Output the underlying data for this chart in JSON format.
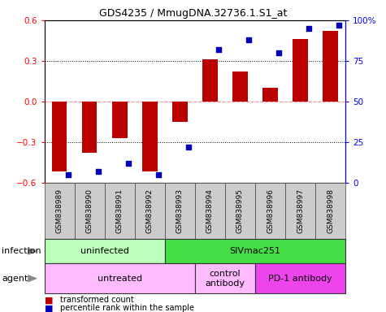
{
  "title": "GDS4235 / MmugDNA.32736.1.S1_at",
  "samples": [
    "GSM838989",
    "GSM838990",
    "GSM838991",
    "GSM838992",
    "GSM838993",
    "GSM838994",
    "GSM838995",
    "GSM838996",
    "GSM838997",
    "GSM838998"
  ],
  "transformed_count": [
    -0.52,
    -0.38,
    -0.27,
    -0.52,
    -0.15,
    0.31,
    0.22,
    0.1,
    0.46,
    0.52
  ],
  "percentile_rank": [
    5,
    7,
    12,
    5,
    22,
    82,
    88,
    80,
    95,
    97
  ],
  "bar_color": "#BB0000",
  "dot_color": "#0000BB",
  "ylim_left": [
    -0.6,
    0.6
  ],
  "ylim_right": [
    0,
    100
  ],
  "yticks_left": [
    -0.6,
    -0.3,
    0.0,
    0.3,
    0.6
  ],
  "yticks_right": [
    0,
    25,
    50,
    75,
    100
  ],
  "infection_groups": [
    {
      "label": "uninfected",
      "start": 0,
      "end": 4,
      "color": "#BBFFBB"
    },
    {
      "label": "SIVmac251",
      "start": 4,
      "end": 10,
      "color": "#44DD44"
    }
  ],
  "agent_groups": [
    {
      "label": "untreated",
      "start": 0,
      "end": 5,
      "color": "#FFBBFF"
    },
    {
      "label": "control\nantibody",
      "start": 5,
      "end": 7,
      "color": "#FFBBFF"
    },
    {
      "label": "PD-1 antibody",
      "start": 7,
      "end": 10,
      "color": "#EE44EE"
    }
  ],
  "legend_items": [
    {
      "label": "transformed count",
      "color": "#BB0000"
    },
    {
      "label": "percentile rank within the sample",
      "color": "#0000BB"
    }
  ],
  "infection_label": "infection",
  "agent_label": "agent",
  "sample_cell_color": "#CCCCCC",
  "zero_line_color": "#FF8888",
  "dotted_line_color": "black"
}
